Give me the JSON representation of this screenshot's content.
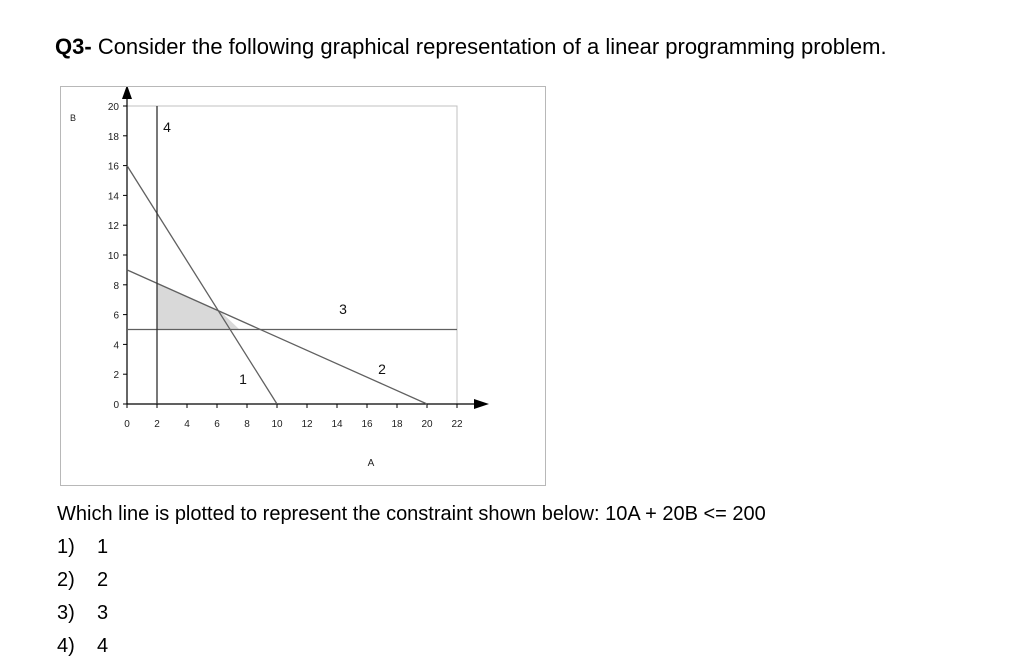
{
  "question": {
    "number": "Q3-",
    "text": "Consider the following graphical representation of a linear programming problem."
  },
  "chart_data": {
    "type": "line",
    "xlabel": "A",
    "ylabel": "B",
    "xlim": [
      0,
      22
    ],
    "ylim": [
      0,
      20
    ],
    "x_ticks": [
      "0",
      "2",
      "4",
      "6",
      "8",
      "10",
      "12",
      "14",
      "16",
      "18",
      "20",
      "22"
    ],
    "y_ticks": [
      "0",
      "2",
      "4",
      "6",
      "8",
      "10",
      "12",
      "14",
      "16",
      "18",
      "20"
    ],
    "grid": false,
    "series": [
      {
        "name": "1",
        "x": [
          0,
          10
        ],
        "y": [
          16,
          0
        ],
        "color": "#606060"
      },
      {
        "name": "2",
        "x": [
          0,
          20
        ],
        "y": [
          9,
          0
        ],
        "color": "#606060"
      },
      {
        "name": "3",
        "x": [
          0,
          22
        ],
        "y": [
          5,
          5
        ],
        "color": "#606060"
      },
      {
        "name": "4",
        "x": [
          2,
          2
        ],
        "y": [
          0,
          20
        ],
        "color": "#303030"
      }
    ],
    "feasible_region": {
      "x": [
        2,
        2,
        6.25,
        7.5
      ],
      "y": [
        5,
        8.1,
        6.19,
        5
      ],
      "fill": "#d9d9d9"
    }
  },
  "prompt": "Which line is plotted to represent the constraint shown below:  10A + 20B <= 200",
  "options": [
    {
      "num": "1)",
      "value": "1"
    },
    {
      "num": "2)",
      "value": "2"
    },
    {
      "num": "3)",
      "value": "3"
    },
    {
      "num": "4)",
      "value": "4"
    }
  ]
}
